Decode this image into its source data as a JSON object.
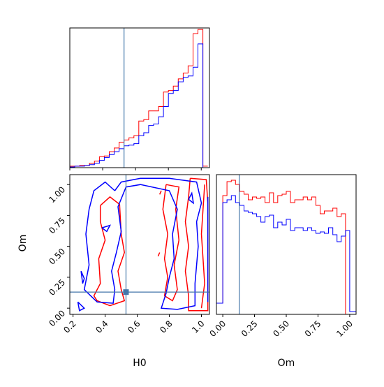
{
  "chart_data": [
    {
      "type": "histogram",
      "panel": "H0-marginal",
      "xlabel": "",
      "xlim": [
        0.2,
        1.05
      ],
      "bins_edges": [
        0.2,
        0.23,
        0.26,
        0.29,
        0.32,
        0.35,
        0.38,
        0.41,
        0.44,
        0.47,
        0.5,
        0.53,
        0.56,
        0.59,
        0.62,
        0.65,
        0.68,
        0.71,
        0.74,
        0.77,
        0.8,
        0.83,
        0.86,
        0.89,
        0.92,
        0.95,
        0.98,
        1.01,
        1.04
      ],
      "series": [
        {
          "color": "#ff0000",
          "values": [
            0.01,
            0.01,
            0.015,
            0.015,
            0.03,
            0.045,
            0.075,
            0.08,
            0.11,
            0.135,
            0.175,
            0.19,
            0.205,
            0.22,
            0.32,
            0.33,
            0.39,
            0.39,
            0.42,
            0.52,
            0.53,
            0.56,
            0.61,
            0.65,
            0.7,
            0.92,
            0.95,
            0.01
          ]
        },
        {
          "color": "#0000ff",
          "values": [
            0.005,
            0.01,
            0.01,
            0.015,
            0.02,
            0.03,
            0.05,
            0.07,
            0.09,
            0.11,
            0.13,
            0.15,
            0.155,
            0.165,
            0.22,
            0.24,
            0.29,
            0.3,
            0.35,
            0.42,
            0.51,
            0.53,
            0.59,
            0.62,
            0.63,
            0.69,
            0.85,
            0.0
          ]
        }
      ],
      "truth": 0.53,
      "truth_color": "#4477aa"
    },
    {
      "type": "contour",
      "panel": "H0-Om-2d",
      "xlabel": "H0",
      "ylabel": "Om",
      "xlim": [
        0.18,
        1.05
      ],
      "ylim": [
        -0.05,
        1.08
      ],
      "xticks": [
        "0.2",
        "0.4",
        "0.6",
        "0.8",
        "1.0"
      ],
      "yticks": [
        "0.00",
        "0.25",
        "0.50",
        "0.75",
        "1.00"
      ],
      "truth": [
        0.53,
        0.13
      ],
      "truth_color": "#4477aa",
      "series": [
        {
          "color": "#ff0000",
          "contours": [
            [
              [
                0.93,
                1.05
              ],
              [
                1.03,
                1.04
              ],
              [
                1.04,
                0.85
              ],
              [
                1.04,
                0.5
              ],
              [
                1.04,
                0.15
              ],
              [
                1.04,
                -0.02
              ],
              [
                0.92,
                -0.02
              ],
              [
                0.92,
                0.1
              ],
              [
                0.9,
                0.3
              ],
              [
                0.92,
                0.5
              ],
              [
                0.9,
                0.7
              ],
              [
                0.92,
                0.9
              ],
              [
                0.93,
                1.05
              ]
            ],
            [
              [
                1.02,
                1.0
              ],
              [
                1.0,
                0.6
              ],
              [
                1.02,
                0.2
              ],
              [
                1.0,
                0.0
              ]
            ],
            [
              [
                0.37,
                0.83
              ],
              [
                0.43,
                0.9
              ],
              [
                0.49,
                0.84
              ],
              [
                0.5,
                0.6
              ],
              [
                0.52,
                0.45
              ],
              [
                0.48,
                0.3
              ],
              [
                0.5,
                0.15
              ],
              [
                0.52,
                0.06
              ],
              [
                0.43,
                0.02
              ],
              [
                0.35,
                0.06
              ],
              [
                0.33,
                0.1
              ],
              [
                0.37,
                0.2
              ],
              [
                0.36,
                0.4
              ],
              [
                0.4,
                0.55
              ],
              [
                0.37,
                0.7
              ],
              [
                0.37,
                0.83
              ]
            ],
            [
              [
                0.78,
                1.0
              ],
              [
                0.76,
                0.8
              ],
              [
                0.79,
                0.6
              ],
              [
                0.77,
                0.4
              ],
              [
                0.79,
                0.25
              ],
              [
                0.77,
                0.1
              ],
              [
                0.82,
                0.06
              ],
              [
                0.85,
                0.15
              ],
              [
                0.83,
                0.35
              ],
              [
                0.86,
                0.55
              ],
              [
                0.84,
                0.8
              ],
              [
                0.86,
                0.98
              ],
              [
                0.78,
                1.0
              ]
            ],
            [
              [
                0.74,
                0.92
              ],
              [
                0.75,
                0.95
              ]
            ],
            [
              [
                0.73,
                0.42
              ],
              [
                0.74,
                0.45
              ]
            ]
          ]
        },
        {
          "color": "#0000ff",
          "contours": [
            [
              [
                0.46,
                0.95
              ],
              [
                0.5,
                1.02
              ],
              [
                0.62,
                1.05
              ],
              [
                0.8,
                1.05
              ],
              [
                0.97,
                1.02
              ],
              [
                1.0,
                0.85
              ],
              [
                0.97,
                0.7
              ],
              [
                0.98,
                0.5
              ],
              [
                0.96,
                0.2
              ],
              [
                0.96,
                0.02
              ],
              [
                0.85,
                -0.01
              ],
              [
                0.75,
                0.0
              ],
              [
                0.78,
                0.12
              ],
              [
                0.8,
                0.25
              ],
              [
                0.83,
                0.4
              ],
              [
                0.82,
                0.6
              ],
              [
                0.85,
                0.8
              ],
              [
                0.8,
                0.95
              ],
              [
                0.62,
                1.0
              ],
              [
                0.53,
                0.98
              ],
              [
                0.48,
                0.82
              ],
              [
                0.5,
                0.62
              ],
              [
                0.47,
                0.45
              ],
              [
                0.44,
                0.3
              ],
              [
                0.46,
                0.15
              ],
              [
                0.45,
                0.04
              ],
              [
                0.35,
                0.05
              ],
              [
                0.27,
                0.15
              ],
              [
                0.3,
                0.35
              ],
              [
                0.28,
                0.6
              ],
              [
                0.3,
                0.8
              ],
              [
                0.33,
                0.95
              ],
              [
                0.4,
                1.02
              ],
              [
                0.46,
                0.95
              ]
            ],
            [
              [
                1.04,
                0.9
              ],
              [
                1.04,
                0.05
              ]
            ],
            [
              [
                0.23,
                0.05
              ],
              [
                0.27,
                0.0
              ],
              [
                0.24,
                -0.02
              ],
              [
                0.23,
                0.05
              ]
            ],
            [
              [
                0.25,
                0.3
              ],
              [
                0.27,
                0.24
              ],
              [
                0.26,
                0.2
              ],
              [
                0.25,
                0.3
              ]
            ],
            [
              [
                0.38,
                0.65
              ],
              [
                0.43,
                0.67
              ],
              [
                0.41,
                0.62
              ],
              [
                0.38,
                0.65
              ]
            ],
            [
              [
                0.92,
                0.88
              ],
              [
                0.94,
                0.93
              ],
              [
                0.95,
                0.85
              ],
              [
                0.92,
                0.88
              ]
            ]
          ]
        }
      ]
    },
    {
      "type": "histogram",
      "panel": "Om-marginal",
      "xlabel": "Om",
      "xlim": [
        -0.05,
        1.05
      ],
      "xticks": [
        "0.00",
        "0.25",
        "0.50",
        "0.75",
        "1.00"
      ],
      "bins_edges": [
        -0.05,
        0.0,
        0.033,
        0.067,
        0.1,
        0.133,
        0.167,
        0.2,
        0.233,
        0.267,
        0.3,
        0.333,
        0.367,
        0.4,
        0.433,
        0.467,
        0.5,
        0.533,
        0.567,
        0.6,
        0.633,
        0.667,
        0.7,
        0.733,
        0.767,
        0.8,
        0.833,
        0.867,
        0.9,
        0.933,
        0.967,
        1.0,
        1.05
      ],
      "series": [
        {
          "color": "#ff0000",
          "values": [
            0.08,
            0.85,
            0.95,
            0.96,
            0.93,
            0.88,
            0.86,
            0.82,
            0.84,
            0.83,
            0.84,
            0.8,
            0.87,
            0.8,
            0.85,
            0.86,
            0.88,
            0.8,
            0.82,
            0.82,
            0.84,
            0.82,
            0.84,
            0.78,
            0.72,
            0.74,
            0.74,
            0.76,
            0.7,
            0.72,
            0.0,
            0.0
          ]
        },
        {
          "color": "#0000ff",
          "values": [
            0.08,
            0.8,
            0.82,
            0.85,
            0.8,
            0.78,
            0.74,
            0.73,
            0.72,
            0.7,
            0.66,
            0.7,
            0.71,
            0.62,
            0.66,
            0.64,
            0.68,
            0.6,
            0.62,
            0.62,
            0.6,
            0.62,
            0.6,
            0.58,
            0.59,
            0.58,
            0.62,
            0.57,
            0.52,
            0.56,
            0.6,
            0.02
          ]
        }
      ],
      "truth": 0.13,
      "truth_color": "#4477aa"
    }
  ]
}
